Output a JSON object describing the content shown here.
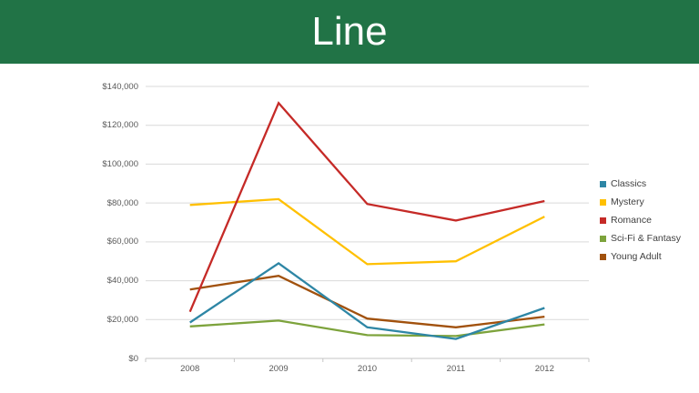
{
  "header": {
    "title": "Line",
    "background": "#217346",
    "text_color": "#ffffff"
  },
  "chart_data": {
    "type": "line",
    "title": "Line",
    "x": [
      "2008",
      "2009",
      "2010",
      "2011",
      "2012"
    ],
    "series": [
      {
        "name": "Classics",
        "color": "#2E86A5",
        "z": 5,
        "values": [
          18500,
          49000,
          16000,
          10000,
          26000
        ]
      },
      {
        "name": "Mystery",
        "color": "#FFC000",
        "z": 3,
        "values": [
          79000,
          82000,
          48500,
          50000,
          73000
        ]
      },
      {
        "name": "Romance",
        "color": "#C52A27",
        "z": 4,
        "values": [
          24000,
          131500,
          79500,
          71000,
          81000
        ]
      },
      {
        "name": "Sci-Fi & Fantasy",
        "color": "#7DA33C",
        "z": 1,
        "values": [
          16500,
          19500,
          12000,
          11500,
          17500
        ]
      },
      {
        "name": "Young Adult",
        "color": "#A1510D",
        "z": 2,
        "values": [
          35500,
          42500,
          20500,
          16000,
          21500
        ]
      }
    ],
    "ylim": [
      0,
      140000
    ],
    "ytick_step": 20000,
    "ytick_labels": [
      "$0",
      "$20,000",
      "$40,000",
      "$60,000",
      "$80,000",
      "$100,000",
      "$120,000",
      "$140,000"
    ],
    "xtick_labels": [
      "2008",
      "2009",
      "2010",
      "2011",
      "2012"
    ],
    "legend_position": "right",
    "grid": "horizontal",
    "gridline_color": "#D9D9D9",
    "axis_line_color": "#C6C6C6",
    "tick_color": "#C6C6C6",
    "label_color": "#595959",
    "line_width": 2.3
  }
}
